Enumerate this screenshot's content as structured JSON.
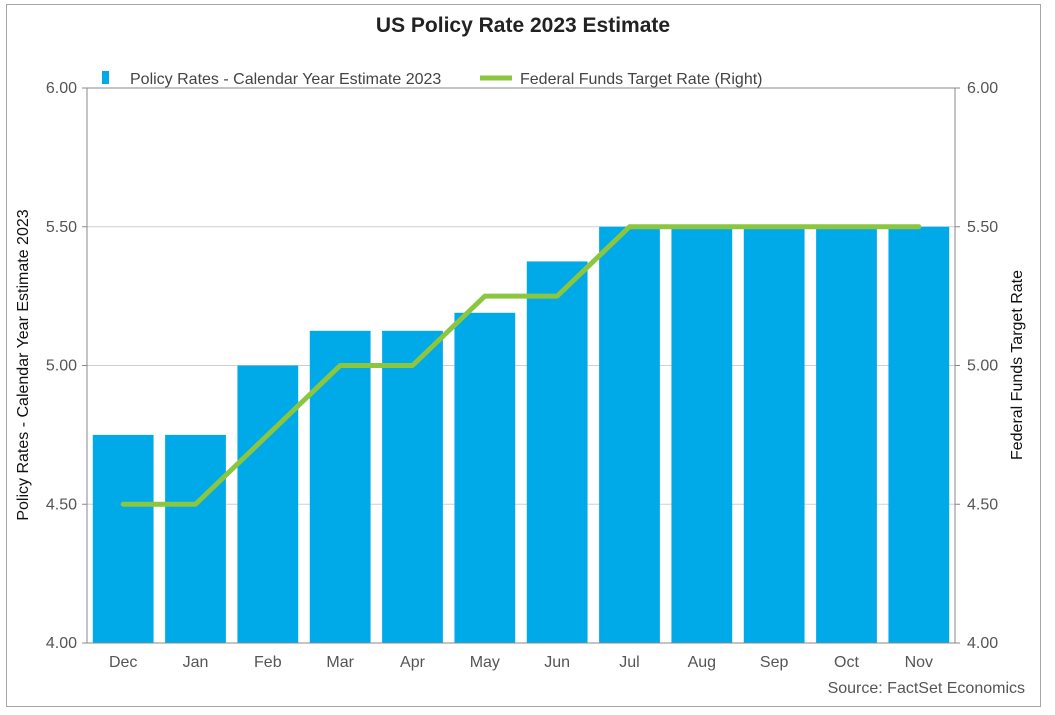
{
  "chart_data": {
    "type": "bar",
    "title": "US Policy Rate 2023 Estimate",
    "categories": [
      "Dec",
      "Jan",
      "Feb",
      "Mar",
      "Apr",
      "May",
      "Jun",
      "Jul",
      "Aug",
      "Sep",
      "Oct",
      "Nov"
    ],
    "series": [
      {
        "name": "Policy Rates - Calendar Year Estimate 2023",
        "type": "bar",
        "axis": "left",
        "color": "#00A9E8",
        "values": [
          4.75,
          4.75,
          5.0,
          5.125,
          5.125,
          5.19,
          5.375,
          5.5,
          5.5,
          5.5,
          5.5,
          5.5
        ]
      },
      {
        "name": "Federal Funds Target Rate (Right)",
        "type": "line",
        "axis": "right",
        "color": "#8CC63F",
        "values": [
          4.5,
          4.5,
          4.75,
          5.0,
          5.0,
          5.25,
          5.25,
          5.5,
          5.5,
          5.5,
          5.5,
          5.5
        ]
      }
    ],
    "ylabel": "Policy Rates - Calendar Year Estimate 2023",
    "y2label": "Federal Funds Target Rate",
    "ylim": [
      4.0,
      6.0
    ],
    "y2lim": [
      4.0,
      6.0
    ],
    "yticks": [
      "4.00",
      "4.50",
      "5.00",
      "5.50",
      "6.00"
    ],
    "y2ticks": [
      "4.00",
      "4.50",
      "5.00",
      "5.50",
      "6.00"
    ],
    "grid": true,
    "legend": "top",
    "source": "Source: FactSet Economics"
  }
}
